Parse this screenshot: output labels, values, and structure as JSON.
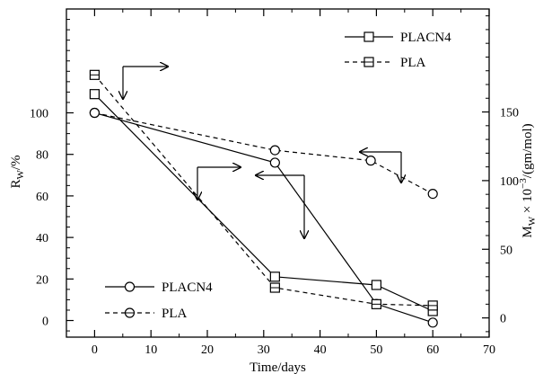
{
  "chart_data": {
    "type": "line",
    "xlabel": "Time/days",
    "ylabel_left": "R",
    "ylabel_left_sub": "W",
    "ylabel_left_unit": "/%",
    "ylabel_right": "M",
    "ylabel_right_sub": "W",
    "ylabel_right_mid": " × 10",
    "ylabel_right_sup": "−3",
    "ylabel_right_unit": "/(gm/mol)",
    "xlim": [
      -5,
      70
    ],
    "ylim_left": [
      -8,
      150
    ],
    "ylim_right": [
      -14,
      225
    ],
    "xticks": [
      0,
      10,
      20,
      30,
      40,
      50,
      60,
      70
    ],
    "yticks_left": [
      0,
      20,
      40,
      60,
      80,
      100
    ],
    "yticks_right": [
      0,
      50,
      100,
      150
    ],
    "legend_left": {
      "position": "bottom-left",
      "marker": "circle",
      "entries": [
        "PLACN4",
        "PLA"
      ]
    },
    "legend_right": {
      "position": "top-right",
      "marker": "square",
      "entries": [
        "PLACN4",
        "PLA"
      ]
    },
    "series": [
      {
        "name": "PLACN4",
        "axis": "left",
        "marker": "circle",
        "style": "solid",
        "x": [
          0,
          32,
          50,
          60
        ],
        "y": [
          100,
          76,
          8,
          -1
        ]
      },
      {
        "name": "PLA",
        "axis": "left",
        "marker": "circle",
        "style": "dashed",
        "x": [
          0,
          32,
          49,
          60
        ],
        "y": [
          100,
          82,
          77,
          61
        ]
      },
      {
        "name": "PLACN4",
        "axis": "right",
        "marker": "square",
        "style": "solid",
        "x": [
          0,
          32,
          50,
          60
        ],
        "y": [
          163,
          30,
          24,
          5
        ]
      },
      {
        "name": "PLA",
        "axis": "right",
        "marker": "square",
        "style": "dashed",
        "x": [
          0,
          32,
          50,
          60
        ],
        "y": [
          177,
          22,
          10,
          9
        ]
      }
    ]
  }
}
